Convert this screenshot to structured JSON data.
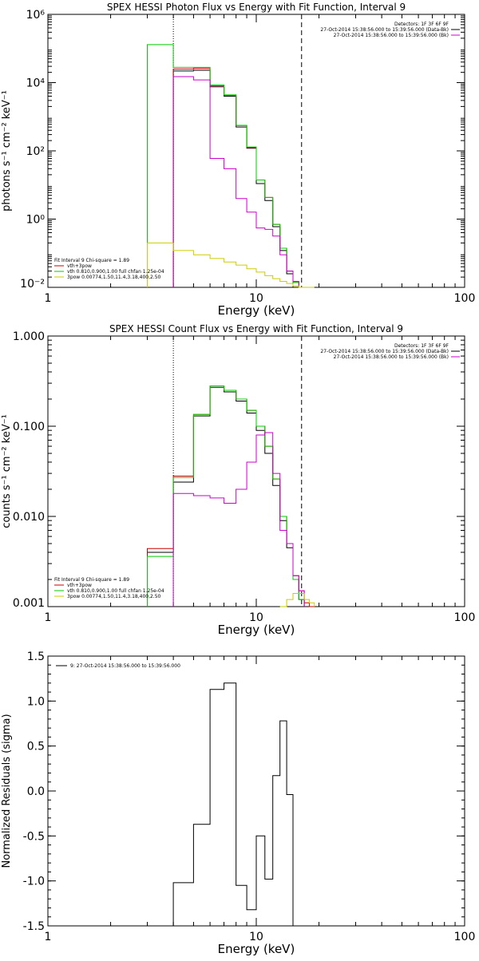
{
  "chart_data": [
    {
      "type": "line",
      "title": "SPEX HESSI Photon Flux vs Energy with Fit Function, Interval 9",
      "xlabel": "Energy (keV)",
      "ylabel": "photons s⁻¹ cm⁻² keV⁻¹",
      "xscale": "log",
      "yscale": "log",
      "xlim": [
        1,
        100
      ],
      "ylim": [
        0.01,
        1000000
      ],
      "xticks": [
        "1",
        "10",
        "100"
      ],
      "yticks": [
        "10⁻²",
        "10⁰",
        "10²",
        "10⁴",
        "10⁶"
      ],
      "ytick_values": [
        0.01,
        1,
        100,
        10000,
        1000000
      ],
      "vlines": [
        {
          "x": 4.0,
          "style": "dotted"
        },
        {
          "x": 16.5,
          "style": "dashed"
        }
      ],
      "legend_topright": [
        {
          "text": "Detectors: 1F 3F 6F 9F",
          "color": "#000000"
        },
        {
          "text": "27-Oct-2014 15:38:56.000 to 15:39:56.000 (Data-Bk)",
          "color": "#000000"
        },
        {
          "text": "27-Oct-2014 15:38:56.000 to 15:39:56.000 (Bk)",
          "color": "#cc00cc"
        }
      ],
      "legend_bottomleft": [
        {
          "text": "Fit Interval 9   Chi-square = 1.89",
          "color": "#000000"
        },
        {
          "text": "vth+3pow",
          "color": "#cc0000"
        },
        {
          "text": "vth 0.810,0.900,1.00  full chfan 1.25e-04",
          "color": "#00cc00"
        },
        {
          "text": "3pow 0.00774,1.50,11.4,3.18,400,2.50",
          "color": "#cccc00"
        }
      ],
      "bin_edges": [
        3.0,
        4.0,
        5.0,
        6.0,
        7.0,
        8.0,
        9.0,
        10.0,
        11.0,
        12.0,
        13.0,
        14.0,
        15.0,
        16.0,
        17.0,
        18.0,
        19.0,
        20.0
      ],
      "series": [
        {
          "color": "#000000",
          "values": [
            null,
            22000,
            23000,
            7500,
            4000,
            500,
            120,
            11,
            3.5,
            0.6,
            0.12,
            0.025,
            null,
            null,
            null,
            null,
            null
          ]
        },
        {
          "color": "#cc0000",
          "values": [
            null,
            25000,
            26000,
            8200,
            4300,
            550,
            125,
            14,
            4.3,
            0.7,
            0.14,
            0.03,
            0.014,
            0.01,
            null,
            null,
            null
          ]
        },
        {
          "color": "#00cc00",
          "values": [
            130000,
            28000,
            28000,
            8500,
            4400,
            560,
            130,
            14,
            4.3,
            0.7,
            0.14,
            0.03,
            0.014,
            0.01,
            null,
            null,
            null
          ]
        },
        {
          "color": "#cc00cc",
          "values": [
            null,
            15000,
            12000,
            60,
            30,
            4,
            1.6,
            0.55,
            0.5,
            0.32,
            0.09,
            0.03,
            0.015,
            null,
            null,
            null,
            null
          ]
        },
        {
          "color": "#cccc00",
          "values": [
            0.2,
            0.12,
            0.09,
            0.07,
            0.055,
            0.045,
            0.035,
            0.028,
            0.022,
            0.018,
            0.015,
            0.013,
            0.011,
            0.01,
            0.01,
            0.01,
            null
          ]
        }
      ]
    },
    {
      "type": "line",
      "title": "SPEX HESSI Count Flux vs Energy with Fit Function, Interval 9",
      "xlabel": "Energy (keV)",
      "ylabel": "counts s⁻¹ cm⁻² keV⁻¹",
      "xscale": "log",
      "yscale": "log",
      "xlim": [
        1,
        100
      ],
      "ylim": [
        0.001,
        1.0
      ],
      "xticks": [
        "1",
        "10",
        "100"
      ],
      "yticks": [
        "0.001",
        "0.010",
        "0.100",
        "1.000"
      ],
      "ytick_values": [
        0.001,
        0.01,
        0.1,
        1.0
      ],
      "vlines": [
        {
          "x": 4.0,
          "style": "dotted"
        },
        {
          "x": 16.5,
          "style": "dashed"
        }
      ],
      "legend_topright": [
        {
          "text": "Detectors: 1F 3F 6F 9F",
          "color": "#000000"
        },
        {
          "text": "27-Oct-2014 15:38:56.000 to 15:39:56.000 (Data-Bk)",
          "color": "#000000"
        },
        {
          "text": "27-Oct-2014 15:38:56.000 to 15:39:56.000 (Bk)",
          "color": "#cc00cc"
        }
      ],
      "legend_bottomleft": [
        {
          "text": "Fit Interval 9   Chi-square = 1.89",
          "color": "#000000"
        },
        {
          "text": "vth+3pow",
          "color": "#cc0000"
        },
        {
          "text": "vth 0.810,0.900,1.00  full chfan 1.25e-04",
          "color": "#00cc00"
        },
        {
          "text": "3pow 0.00774,1.50,11.4,3.18,400,2.50",
          "color": "#cccc00"
        }
      ],
      "bin_edges": [
        3.0,
        4.0,
        5.0,
        6.0,
        7.0,
        8.0,
        9.0,
        10.0,
        11.0,
        12.0,
        13.0,
        14.0,
        15.0,
        16.0,
        17.0,
        18.0,
        19.0,
        20.0
      ],
      "series": [
        {
          "color": "#000000",
          "values": [
            0.004,
            0.024,
            0.13,
            0.27,
            0.24,
            0.19,
            0.14,
            0.09,
            0.05,
            0.022,
            0.009,
            0.0045,
            0.002,
            0.0012,
            null,
            null,
            null
          ]
        },
        {
          "color": "#cc0000",
          "values": [
            0.0044,
            0.028,
            0.135,
            0.28,
            0.25,
            0.2,
            0.15,
            0.1,
            0.06,
            0.026,
            0.01,
            0.005,
            0.0022,
            0.0015,
            0.0011,
            0.001,
            null
          ]
        },
        {
          "color": "#00cc00",
          "values": [
            0.0036,
            0.027,
            0.135,
            0.28,
            0.25,
            0.2,
            0.15,
            0.1,
            0.06,
            0.026,
            0.01,
            0.005,
            0.002,
            0.0012,
            null,
            null,
            null
          ]
        },
        {
          "color": "#cc00cc",
          "values": [
            null,
            0.018,
            0.017,
            0.016,
            0.014,
            0.02,
            0.04,
            0.08,
            0.085,
            0.03,
            0.007,
            0.005,
            0.0022,
            0.0015,
            null,
            null,
            null
          ]
        },
        {
          "color": "#cccc00",
          "values": [
            null,
            null,
            null,
            null,
            null,
            null,
            null,
            null,
            null,
            null,
            0.001,
            0.0012,
            0.0014,
            0.0014,
            0.0012,
            0.0011,
            null
          ]
        }
      ]
    },
    {
      "type": "line",
      "title": "",
      "xlabel": "Energy (keV)",
      "ylabel": "Normalized Residuals (sigma)",
      "xscale": "log",
      "yscale": "linear",
      "xlim": [
        1,
        100
      ],
      "ylim": [
        -1.5,
        1.5
      ],
      "xticks": [
        "1",
        "10",
        "100"
      ],
      "yticks": [
        "-1.5",
        "-1.0",
        "-0.5",
        "0.0",
        "0.5",
        "1.0",
        "1.5"
      ],
      "ytick_values": [
        -1.5,
        -1.0,
        -0.5,
        0.0,
        0.5,
        1.0,
        1.5
      ],
      "legend_topleft": [
        {
          "text": "9: 27-Oct-2014 15:38:56.000 to 15:39:56.000",
          "color": "#000000"
        }
      ],
      "bin_edges": [
        4.0,
        5.0,
        6.0,
        7.0,
        8.0,
        9.0,
        10.0,
        11.0,
        12.0,
        13.0,
        14.0,
        15.0,
        16.5
      ],
      "series": [
        {
          "color": "#000000",
          "values": [
            -1.02,
            -0.37,
            1.13,
            1.2,
            -1.05,
            -1.32,
            -0.5,
            -0.98,
            0.17,
            0.78,
            -0.04,
            null
          ]
        }
      ]
    }
  ]
}
